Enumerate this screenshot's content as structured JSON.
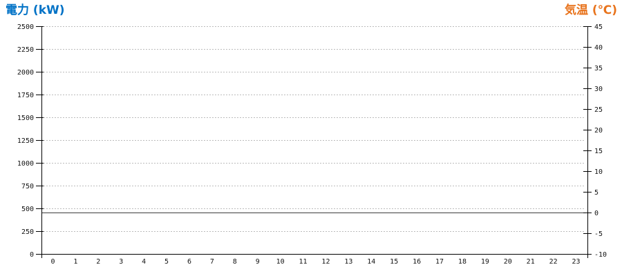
{
  "titles": {
    "left": "電力 (kW)",
    "right": "気温 (℃)"
  },
  "colors": {
    "left_title": "#0072C6",
    "right_title": "#E8731C",
    "axis": "#000000",
    "gridline": "#BBBBBB",
    "tick_label": "#111111",
    "zero_line": "#3D3D3D",
    "background": "#FFFFFF"
  },
  "chart_data": {
    "type": "line",
    "title": "",
    "x_categories": [
      "0",
      "1",
      "2",
      "3",
      "4",
      "5",
      "6",
      "7",
      "8",
      "9",
      "10",
      "11",
      "12",
      "13",
      "14",
      "15",
      "16",
      "17",
      "18",
      "19",
      "20",
      "21",
      "22",
      "23"
    ],
    "left_axis": {
      "label": "電力 (kW)",
      "min": 0,
      "max": 2500,
      "step": 250,
      "tick_labels": [
        "0",
        "250",
        "500",
        "750",
        "1000",
        "1250",
        "1500",
        "1750",
        "2000",
        "2250",
        "2500"
      ]
    },
    "right_axis": {
      "label": "気温 (℃)",
      "min": -10,
      "max": 45,
      "step": 5,
      "tick_labels": [
        "-10",
        "-5",
        "0",
        "5",
        "10",
        "15",
        "20",
        "25",
        "30",
        "35",
        "40",
        "45"
      ]
    },
    "series": [],
    "annotations": [
      {
        "type": "horizontal_line",
        "axis": "right",
        "value": 0
      }
    ],
    "grid": {
      "horizontal": "dashed",
      "vertical": "none"
    },
    "legend": "none"
  }
}
